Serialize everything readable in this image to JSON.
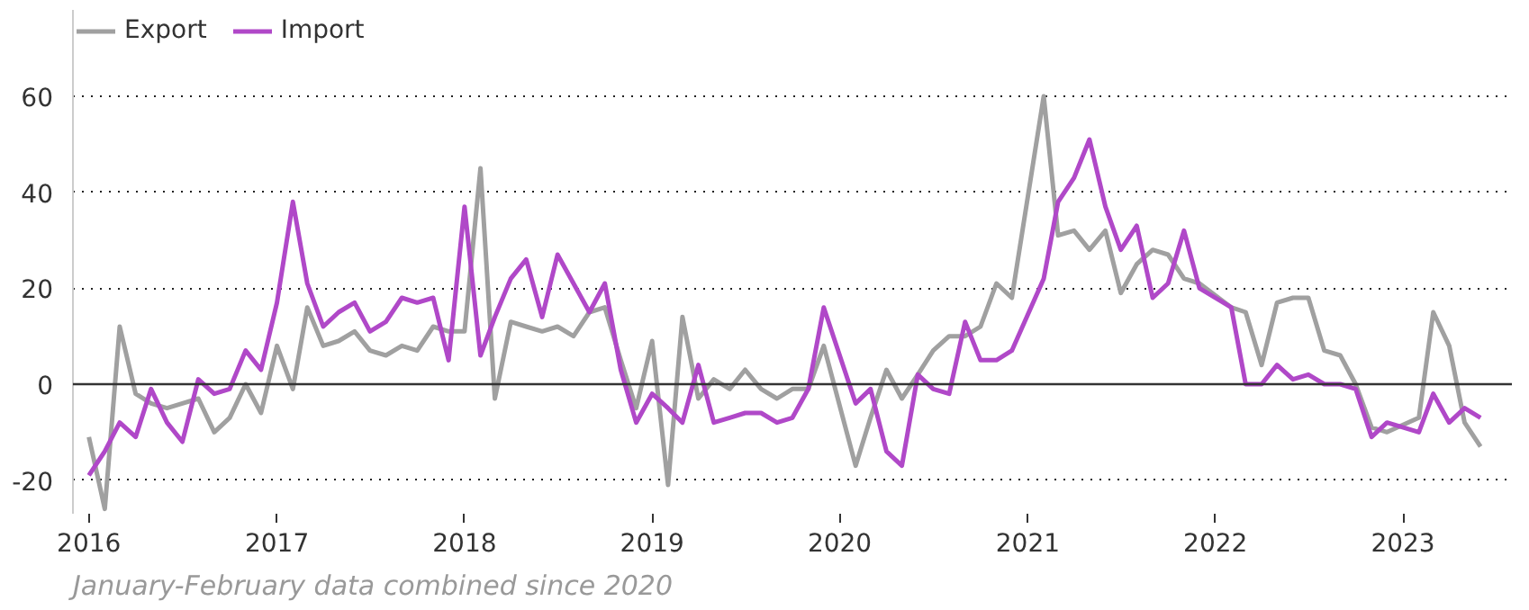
{
  "chart_data": {
    "type": "line",
    "x": [
      "2016-01",
      "2016-02",
      "2016-03",
      "2016-04",
      "2016-05",
      "2016-06",
      "2016-07",
      "2016-08",
      "2016-09",
      "2016-10",
      "2016-11",
      "2016-12",
      "2017-01",
      "2017-02",
      "2017-03",
      "2017-04",
      "2017-05",
      "2017-06",
      "2017-07",
      "2017-08",
      "2017-09",
      "2017-10",
      "2017-11",
      "2017-12",
      "2018-01",
      "2018-02",
      "2018-03",
      "2018-04",
      "2018-05",
      "2018-06",
      "2018-07",
      "2018-08",
      "2018-09",
      "2018-10",
      "2018-11",
      "2018-12",
      "2019-01",
      "2019-02",
      "2019-03",
      "2019-04",
      "2019-05",
      "2019-06",
      "2019-07",
      "2019-08",
      "2019-09",
      "2019-10",
      "2019-11",
      "2019-12",
      "2020-02",
      "2020-03",
      "2020-04",
      "2020-05",
      "2020-06",
      "2020-07",
      "2020-08",
      "2020-09",
      "2020-10",
      "2020-11",
      "2020-12",
      "2021-02",
      "2021-03",
      "2021-04",
      "2021-05",
      "2021-06",
      "2021-07",
      "2021-08",
      "2021-09",
      "2021-10",
      "2021-11",
      "2021-12",
      "2022-02",
      "2022-03",
      "2022-04",
      "2022-05",
      "2022-06",
      "2022-07",
      "2022-08",
      "2022-09",
      "2022-10",
      "2022-11",
      "2022-12",
      "2023-02",
      "2023-03",
      "2023-04",
      "2023-05",
      "2023-06"
    ],
    "series": [
      {
        "name": "Export",
        "color": "#a0a0a0",
        "values": [
          -11,
          -26,
          12,
          -2,
          -4,
          -5,
          -4,
          -3,
          -10,
          -7,
          0,
          -6,
          8,
          -1,
          16,
          8,
          9,
          11,
          7,
          6,
          8,
          7,
          12,
          11,
          11,
          45,
          -3,
          13,
          12,
          11,
          12,
          10,
          15,
          16,
          5,
          -5,
          9,
          -21,
          14,
          -3,
          1,
          -1,
          3,
          -1,
          -3,
          -1,
          -1,
          8,
          -17,
          -7,
          3,
          -3,
          2,
          7,
          10,
          10,
          12,
          21,
          18,
          60,
          31,
          32,
          28,
          32,
          19,
          25,
          28,
          27,
          22,
          21,
          16,
          15,
          4,
          17,
          18,
          18,
          7,
          6,
          0,
          -9,
          -10,
          -7,
          15,
          8,
          -8,
          -13
        ]
      },
      {
        "name": "Import",
        "color": "#b048c8",
        "values": [
          -19,
          -14,
          -8,
          -11,
          -1,
          -8,
          -12,
          1,
          -2,
          -1,
          7,
          3,
          17,
          38,
          21,
          12,
          15,
          17,
          11,
          13,
          18,
          17,
          18,
          5,
          37,
          6,
          14,
          22,
          26,
          14,
          27,
          21,
          15,
          21,
          3,
          -8,
          -2,
          -5,
          -8,
          4,
          -8,
          -7,
          -6,
          -6,
          -8,
          -7,
          -1,
          16,
          -4,
          -1,
          -14,
          -17,
          2,
          -1,
          -2,
          13,
          5,
          5,
          7,
          22,
          38,
          43,
          51,
          37,
          28,
          33,
          18,
          21,
          32,
          20,
          16,
          0,
          0,
          4,
          1,
          2,
          0,
          0,
          -1,
          -11,
          -8,
          -10,
          -2,
          -8,
          -5,
          -7
        ]
      }
    ],
    "xlim": [
      "2015-12-01",
      "2023-08-01"
    ],
    "xticks": [
      {
        "value": "2016-01-01",
        "label": "2016"
      },
      {
        "value": "2017-01-01",
        "label": "2017"
      },
      {
        "value": "2018-01-01",
        "label": "2018"
      },
      {
        "value": "2019-01-01",
        "label": "2019"
      },
      {
        "value": "2020-01-01",
        "label": "2020"
      },
      {
        "value": "2021-01-01",
        "label": "2021"
      },
      {
        "value": "2022-01-01",
        "label": "2022"
      },
      {
        "value": "2023-01-01",
        "label": "2023"
      }
    ],
    "ylim": [
      -27,
      78
    ],
    "yticks": [
      -20,
      0,
      20,
      40,
      60
    ],
    "grid": "y",
    "ref_lines": [
      {
        "axis": "y",
        "value": 0,
        "color": "#333333"
      }
    ],
    "legend": "top left",
    "line_style": "solid",
    "marker": "none",
    "annotations": [
      "January-February data combined since 2020"
    ]
  }
}
